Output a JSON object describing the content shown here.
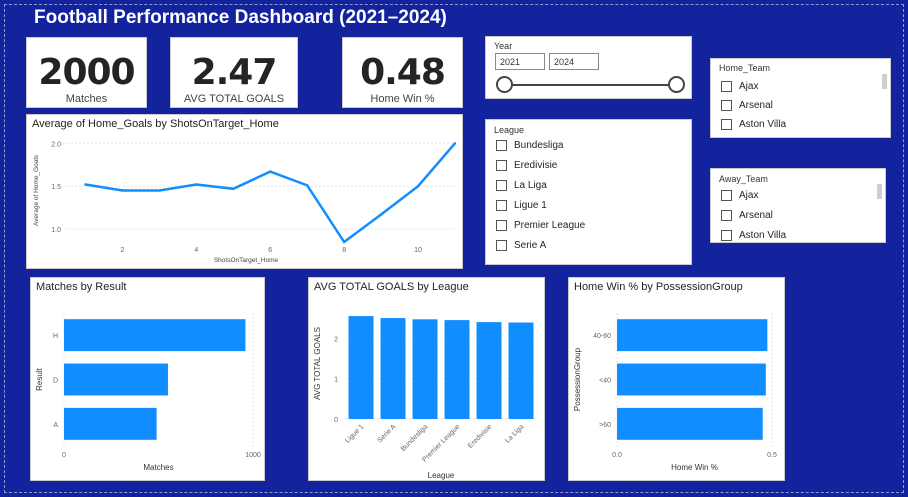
{
  "title": "Football Performance Dashboard (2021–2024)",
  "kpis": {
    "matches": {
      "value": "2000",
      "label": "Matches"
    },
    "avg_goals": {
      "value": "2.47",
      "label": "AVG TOTAL GOALS"
    },
    "home_win": {
      "value": "0.48",
      "label": "Home Win %"
    }
  },
  "year_slicer": {
    "title": "Year",
    "start": "2021",
    "end": "2024"
  },
  "home_team_slicer": {
    "title": "Home_Team",
    "items": [
      "Ajax",
      "Arsenal",
      "Aston Villa"
    ]
  },
  "away_team_slicer": {
    "title": "Away_Team",
    "items": [
      "Ajax",
      "Arsenal",
      "Aston Villa"
    ]
  },
  "league_slicer": {
    "title": "League",
    "items": [
      "Bundesliga",
      "Eredivisie",
      "La Liga",
      "Ligue 1",
      "Premier League",
      "Serie A"
    ]
  },
  "colors": {
    "accent": "#118dff",
    "background": "#13239e"
  },
  "charts": {
    "line": {
      "title": "Average of Home_Goals by ShotsOnTarget_Home"
    },
    "result": {
      "title": "Matches by Result"
    },
    "league": {
      "title": "AVG TOTAL GOALS by League"
    },
    "possession": {
      "title": "Home Win % by PossessionGroup"
    }
  },
  "chart_data": [
    {
      "type": "line",
      "title": "Average of Home_Goals by ShotsOnTarget_Home",
      "xlabel": "ShotsOnTarget_Home",
      "ylabel": "Average of Home_Goals",
      "x": [
        1,
        2,
        3,
        4,
        5,
        6,
        7,
        8,
        9,
        10,
        11
      ],
      "values": [
        1.52,
        1.45,
        1.45,
        1.52,
        1.47,
        1.67,
        1.51,
        0.85,
        1.17,
        1.5,
        2.0
      ],
      "xticks": [
        "2",
        "4",
        "6",
        "8",
        "10"
      ],
      "yticks": [
        "1.0",
        "1.5",
        "2.0"
      ],
      "xlim": [
        0.5,
        11
      ],
      "ylim": [
        0.85,
        2.05
      ]
    },
    {
      "type": "bar",
      "orientation": "horizontal",
      "title": "Matches by Result",
      "xlabel": "Matches",
      "ylabel": "Result",
      "categories": [
        "H",
        "D",
        "A"
      ],
      "values": [
        960,
        550,
        490
      ],
      "xticks": [
        "0",
        "1000"
      ],
      "xlim": [
        0,
        1000
      ]
    },
    {
      "type": "bar",
      "title": "AVG TOTAL GOALS by League",
      "xlabel": "League",
      "ylabel": "AVG TOTAL GOALS",
      "categories": [
        "Ligue 1",
        "Serie A",
        "Bundesliga",
        "Premier League",
        "Eredivisie",
        "La Liga"
      ],
      "values": [
        2.55,
        2.5,
        2.47,
        2.45,
        2.4,
        2.39
      ],
      "yticks": [
        "0",
        "1",
        "2"
      ],
      "ylim": [
        0,
        2.75
      ]
    },
    {
      "type": "bar",
      "orientation": "horizontal",
      "title": "Home Win % by PossessionGroup",
      "xlabel": "Home Win %",
      "ylabel": "PossessionGroup",
      "categories": [
        "40-60",
        "<40",
        ">60"
      ],
      "values": [
        0.485,
        0.48,
        0.47
      ],
      "xticks": [
        "0.0",
        "0.5"
      ],
      "xlim": [
        0,
        0.5
      ]
    }
  ]
}
